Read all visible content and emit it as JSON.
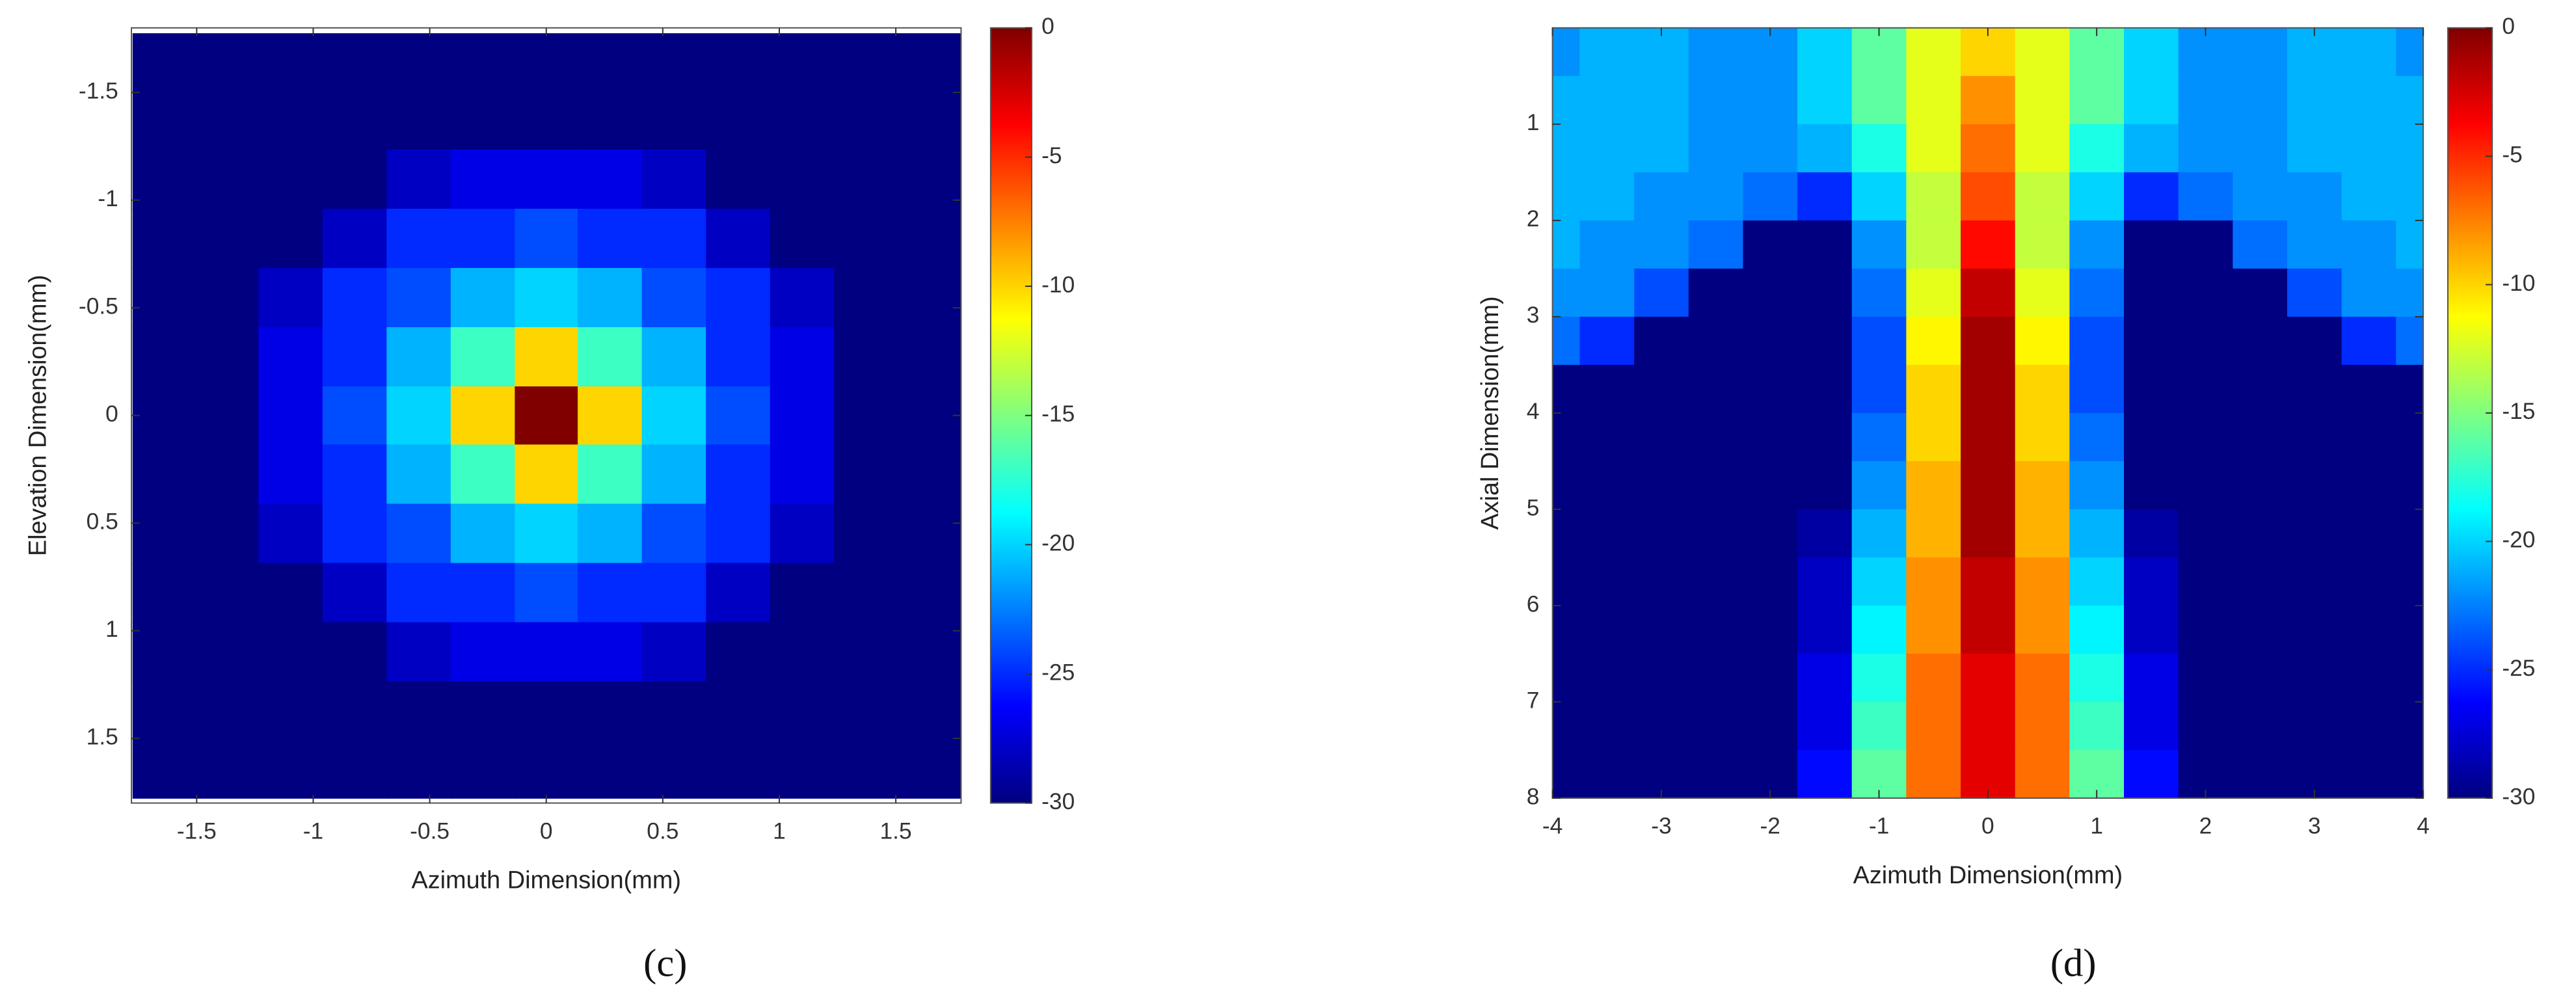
{
  "chart_data": [
    {
      "type": "heatmap",
      "panel_label": "(c)",
      "x_label": "Azimuth Dimension(mm)",
      "y_label": "Elevation Dimension(mm)",
      "colormap": "jet",
      "clim": [
        -30,
        0
      ],
      "cticks": [
        0,
        -5,
        -10,
        -15,
        -20,
        -25,
        -30
      ],
      "xlim": [
        -1.78,
        1.78
      ],
      "ylim": [
        -1.8,
        1.8
      ],
      "y_direction": "reverse",
      "xticks": [
        -1.5,
        -1,
        -0.5,
        0,
        0.5,
        1,
        1.5
      ],
      "yticks": [
        -1.5,
        -1,
        -0.5,
        0,
        0.5,
        1,
        1.5
      ],
      "x": [
        -1.64,
        -1.37,
        -1.1,
        -0.82,
        -0.55,
        -0.27,
        0,
        0.27,
        0.55,
        0.82,
        1.1,
        1.37,
        1.64
      ],
      "y": [
        -1.64,
        -1.37,
        -1.1,
        -0.82,
        -0.55,
        -0.27,
        0,
        0.27,
        0.55,
        0.82,
        1.1,
        1.37,
        1.64
      ],
      "z": [
        [
          -30,
          -30,
          -30,
          -30,
          -30,
          -30,
          -30,
          -30,
          -30,
          -30,
          -30,
          -30,
          -30
        ],
        [
          -30,
          -30,
          -30,
          -30,
          -30,
          -30,
          -30,
          -30,
          -30,
          -30,
          -30,
          -30,
          -30
        ],
        [
          -30,
          -30,
          -30,
          -30,
          -28,
          -27,
          -27,
          -27,
          -28,
          -30,
          -30,
          -30,
          -30
        ],
        [
          -30,
          -30,
          -30,
          -28,
          -25,
          -25,
          -24,
          -25,
          -25,
          -28,
          -30,
          -30,
          -30
        ],
        [
          -30,
          -30,
          -28,
          -25,
          -24,
          -21,
          -20,
          -21,
          -24,
          -25,
          -28,
          -30,
          -30
        ],
        [
          -30,
          -30,
          -27,
          -25,
          -21,
          -17,
          -10,
          -17,
          -21,
          -25,
          -27,
          -30,
          -30
        ],
        [
          -30,
          -30,
          -27,
          -24,
          -20,
          -10,
          0,
          -10,
          -20,
          -24,
          -27,
          -30,
          -30
        ],
        [
          -30,
          -30,
          -27,
          -25,
          -21,
          -17,
          -10,
          -17,
          -21,
          -25,
          -27,
          -30,
          -30
        ],
        [
          -30,
          -30,
          -28,
          -25,
          -24,
          -21,
          -20,
          -21,
          -24,
          -25,
          -28,
          -30,
          -30
        ],
        [
          -30,
          -30,
          -30,
          -28,
          -25,
          -25,
          -24,
          -25,
          -25,
          -28,
          -30,
          -30,
          -30
        ],
        [
          -30,
          -30,
          -30,
          -30,
          -28,
          -27,
          -27,
          -27,
          -28,
          -30,
          -30,
          -30,
          -30
        ],
        [
          -30,
          -30,
          -30,
          -30,
          -30,
          -30,
          -30,
          -30,
          -30,
          -30,
          -30,
          -30,
          -30
        ],
        [
          -30,
          -30,
          -30,
          -30,
          -30,
          -30,
          -30,
          -30,
          -30,
          -30,
          -30,
          -30,
          -30
        ]
      ]
    },
    {
      "type": "heatmap",
      "panel_label": "(d)",
      "x_label": "Azimuth Dimension(mm)",
      "y_label": "Axial Dimension(mm)",
      "colormap": "jet",
      "clim": [
        -30,
        0
      ],
      "cticks": [
        0,
        -5,
        -10,
        -15,
        -20,
        -25,
        -30
      ],
      "xlim": [
        -4,
        4
      ],
      "ylim": [
        0,
        8
      ],
      "y_direction": "reverse",
      "xticks": [
        -4,
        -3,
        -2,
        -1,
        0,
        1,
        2,
        3,
        4
      ],
      "yticks": [
        1,
        2,
        3,
        4,
        5,
        6,
        7,
        8
      ],
      "x": [
        -4,
        -3.5,
        -3,
        -2.5,
        -2,
        -1.5,
        -1,
        -0.5,
        0,
        0.5,
        1,
        1.5,
        2,
        2.5,
        3,
        3.5,
        4
      ],
      "y": [
        0.25,
        0.75,
        1.25,
        1.75,
        2.25,
        2.75,
        3.25,
        3.75,
        4.25,
        4.75,
        5.25,
        5.75,
        6.25,
        6.75,
        7.25,
        7.75
      ],
      "z": [
        [
          -22,
          -21,
          -21,
          -22,
          -22,
          -20,
          -16,
          -12,
          -10,
          -12,
          -16,
          -20,
          -22,
          -22,
          -21,
          -21,
          -22
        ],
        [
          -21,
          -21,
          -21,
          -22,
          -22,
          -20,
          -16,
          -12,
          -8,
          -12,
          -16,
          -20,
          -22,
          -22,
          -21,
          -21,
          -21
        ],
        [
          -21,
          -21,
          -21,
          -22,
          -22,
          -21,
          -18,
          -12,
          -7,
          -12,
          -18,
          -21,
          -22,
          -22,
          -21,
          -21,
          -21
        ],
        [
          -21,
          -21,
          -22,
          -22,
          -23,
          -25,
          -20,
          -13,
          -6,
          -13,
          -20,
          -25,
          -23,
          -22,
          -22,
          -21,
          -21
        ],
        [
          -21,
          -22,
          -22,
          -23,
          -30,
          -30,
          -22,
          -13,
          -4,
          -13,
          -22,
          -30,
          -30,
          -23,
          -22,
          -22,
          -21
        ],
        [
          -22,
          -22,
          -24,
          -30,
          -30,
          -30,
          -23,
          -12,
          -2,
          -12,
          -23,
          -30,
          -30,
          -30,
          -24,
          -22,
          -22
        ],
        [
          -23,
          -25,
          -30,
          -30,
          -30,
          -30,
          -24,
          -11,
          -1,
          -11,
          -24,
          -30,
          -30,
          -30,
          -30,
          -25,
          -23
        ],
        [
          -30,
          -30,
          -30,
          -30,
          -30,
          -30,
          -24,
          -10,
          -1,
          -10,
          -24,
          -30,
          -30,
          -30,
          -30,
          -30,
          -30
        ],
        [
          -30,
          -30,
          -30,
          -30,
          -30,
          -30,
          -23,
          -10,
          -1,
          -10,
          -23,
          -30,
          -30,
          -30,
          -30,
          -30,
          -30
        ],
        [
          -30,
          -30,
          -30,
          -30,
          -30,
          -30,
          -22,
          -9,
          -1,
          -9,
          -22,
          -30,
          -30,
          -30,
          -30,
          -30,
          -30
        ],
        [
          -30,
          -30,
          -30,
          -30,
          -30,
          -29,
          -21,
          -9,
          -1,
          -9,
          -21,
          -29,
          -30,
          -30,
          -30,
          -30,
          -30
        ],
        [
          -30,
          -30,
          -30,
          -30,
          -30,
          -28,
          -20,
          -8,
          -2,
          -8,
          -20,
          -28,
          -30,
          -30,
          -30,
          -30,
          -30
        ],
        [
          -30,
          -30,
          -30,
          -30,
          -30,
          -28,
          -19,
          -8,
          -2,
          -8,
          -19,
          -28,
          -30,
          -30,
          -30,
          -30,
          -30
        ],
        [
          -30,
          -30,
          -30,
          -30,
          -30,
          -27,
          -18,
          -7,
          -3,
          -7,
          -18,
          -27,
          -30,
          -30,
          -30,
          -30,
          -30
        ],
        [
          -30,
          -30,
          -30,
          -30,
          -30,
          -27,
          -17,
          -7,
          -3,
          -7,
          -17,
          -27,
          -30,
          -30,
          -30,
          -30,
          -30
        ],
        [
          -30,
          -30,
          -30,
          -30,
          -30,
          -26,
          -16,
          -7,
          -3,
          -7,
          -16,
          -26,
          -30,
          -30,
          -30,
          -30,
          -30
        ]
      ]
    }
  ]
}
